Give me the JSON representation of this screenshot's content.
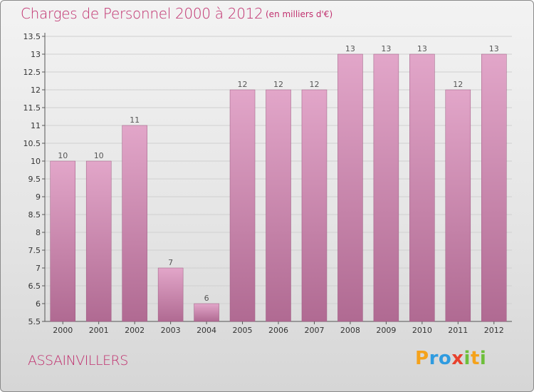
{
  "title": "Charges de Personnel 2000 à 2012",
  "subtitle": "(en milliers d'€)",
  "commune": "ASSAINVILLERS",
  "logo": {
    "letters": [
      {
        "char": "P",
        "color": "#f5a21b"
      },
      {
        "char": "r",
        "color": "#2f9be0"
      },
      {
        "char": "o",
        "color": "#2f9be0"
      },
      {
        "char": "x",
        "color": "#e8412c"
      },
      {
        "char": "i",
        "color": "#6dbf3a"
      },
      {
        "char": "t",
        "color": "#f5a21b"
      },
      {
        "char": "i",
        "color": "#6dbf3a"
      }
    ]
  },
  "colors": {
    "title": "#c0306e",
    "bar_top": "#e2a6c9",
    "bar_bottom": "#b06a92",
    "bar_edge": "#9c5a80",
    "grid": "#d0d0d0"
  },
  "chart_data": {
    "type": "bar",
    "title": "Charges de Personnel 2000 à 2012",
    "subtitle": "(en milliers d'€)",
    "xlabel": "",
    "ylabel": "",
    "categories": [
      "2000",
      "2001",
      "2002",
      "2003",
      "2004",
      "2005",
      "2006",
      "2007",
      "2008",
      "2009",
      "2010",
      "2011",
      "2012"
    ],
    "values": [
      10,
      10,
      11,
      7,
      6,
      12,
      12,
      12,
      13,
      13,
      13,
      12,
      13
    ],
    "ylim": [
      5.5,
      13.5
    ],
    "yticks": [
      "5.5",
      "6",
      "6.5",
      "7",
      "7.5",
      "8",
      "8.5",
      "9",
      "9.5",
      "10",
      "10.5",
      "11",
      "11.5",
      "12",
      "12.5",
      "13",
      "13.5"
    ],
    "grid": true,
    "legend": "none"
  }
}
